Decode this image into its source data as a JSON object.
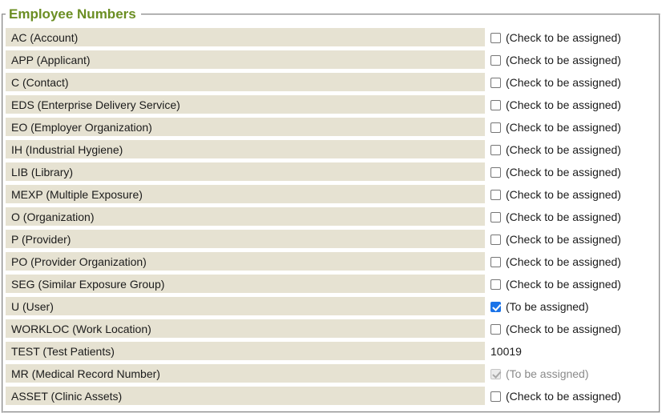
{
  "panel": {
    "title": "Employee Numbers"
  },
  "colors": {
    "title_green": "#6b8e23",
    "row_background": "#e6e2d2",
    "checkbox_checked_blue": "#1a73e8",
    "disabled_gray": "#8a8a8a"
  },
  "rows": [
    {
      "label": "AC (Account)",
      "control": "checkbox",
      "checked": false,
      "disabled": false,
      "text": "(Check to be assigned)"
    },
    {
      "label": "APP (Applicant)",
      "control": "checkbox",
      "checked": false,
      "disabled": false,
      "text": "(Check to be assigned)"
    },
    {
      "label": "C (Contact)",
      "control": "checkbox",
      "checked": false,
      "disabled": false,
      "text": "(Check to be assigned)"
    },
    {
      "label": "EDS (Enterprise Delivery Service)",
      "control": "checkbox",
      "checked": false,
      "disabled": false,
      "text": "(Check to be assigned)"
    },
    {
      "label": "EO (Employer Organization)",
      "control": "checkbox",
      "checked": false,
      "disabled": false,
      "text": "(Check to be assigned)"
    },
    {
      "label": "IH (Industrial Hygiene)",
      "control": "checkbox",
      "checked": false,
      "disabled": false,
      "text": "(Check to be assigned)"
    },
    {
      "label": "LIB (Library)",
      "control": "checkbox",
      "checked": false,
      "disabled": false,
      "text": "(Check to be assigned)"
    },
    {
      "label": "MEXP (Multiple Exposure)",
      "control": "checkbox",
      "checked": false,
      "disabled": false,
      "text": "(Check to be assigned)"
    },
    {
      "label": "O (Organization)",
      "control": "checkbox",
      "checked": false,
      "disabled": false,
      "text": "(Check to be assigned)"
    },
    {
      "label": "P (Provider)",
      "control": "checkbox",
      "checked": false,
      "disabled": false,
      "text": "(Check to be assigned)"
    },
    {
      "label": "PO (Provider Organization)",
      "control": "checkbox",
      "checked": false,
      "disabled": false,
      "text": "(Check to be assigned)"
    },
    {
      "label": "SEG (Similar Exposure Group)",
      "control": "checkbox",
      "checked": false,
      "disabled": false,
      "text": "(Check to be assigned)"
    },
    {
      "label": "U (User)",
      "control": "checkbox",
      "checked": true,
      "disabled": false,
      "text": "(To be assigned)"
    },
    {
      "label": "WORKLOC (Work Location)",
      "control": "checkbox",
      "checked": false,
      "disabled": false,
      "text": "(Check to be assigned)"
    },
    {
      "label": "TEST (Test Patients)",
      "control": "text",
      "text": "10019"
    },
    {
      "label": "MR (Medical Record Number)",
      "control": "checkbox",
      "checked": true,
      "disabled": true,
      "text": "(To be assigned)"
    },
    {
      "label": "ASSET (Clinic Assets)",
      "control": "checkbox",
      "checked": false,
      "disabled": false,
      "text": "(Check to be assigned)"
    }
  ]
}
